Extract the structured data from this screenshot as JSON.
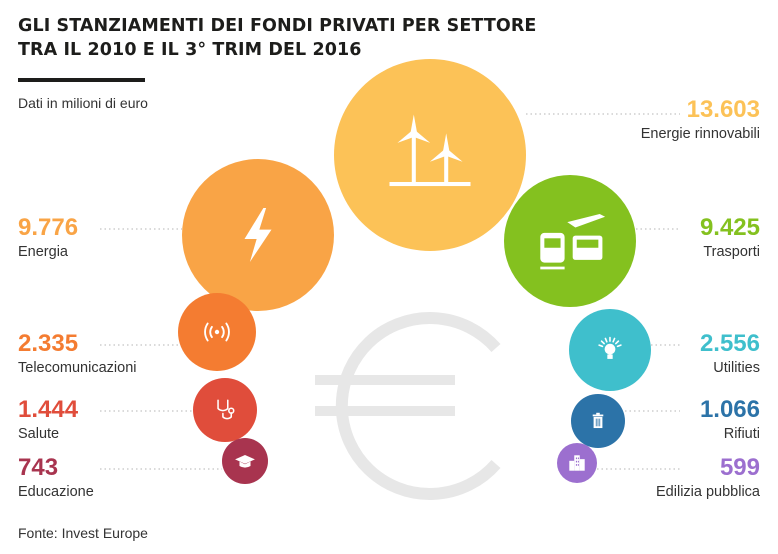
{
  "header": {
    "title_line1": "GLI STANZIAMENTI DEI FONDI PRIVATI PER SETTORE",
    "title_line2": "TRA IL 2010 E IL 3° TRIM DEL 2016",
    "subtitle": "Dati in milioni di euro"
  },
  "footer": {
    "source": "Fonte: Invest Europe"
  },
  "chart_data": {
    "type": "bubble",
    "title": "GLI STANZIAMENTI DEI FONDI PRIVATI PER SETTORE TRA IL 2010 E IL 3° TRIM DEL 2016",
    "unit": "Dati in milioni di euro",
    "background_symbol": "euro-sign",
    "categories": [
      "Energie rinnovabili",
      "Energia",
      "Trasporti",
      "Telecomunicazioni",
      "Utilities",
      "Salute",
      "Rifiuti",
      "Educazione",
      "Edilizia pubblica"
    ],
    "values": [
      13603,
      9776,
      9425,
      2335,
      2556,
      1444,
      1066,
      743,
      599
    ],
    "value_labels": [
      "13.603",
      "9.776",
      "9.425",
      "2.335",
      "2.556",
      "1.444",
      "1.066",
      "743",
      "599"
    ],
    "sides": [
      "right",
      "left",
      "right",
      "left",
      "right",
      "left",
      "right",
      "left",
      "right"
    ],
    "colors": [
      "#fcc257",
      "#f9a446",
      "#84c11f",
      "#f47c31",
      "#3fbfcc",
      "#e04d3b",
      "#2c73a8",
      "#a8344f",
      "#9c6fcf"
    ],
    "icons": [
      "wind-turbine-icon",
      "lightning-icon",
      "transport-icon",
      "broadcast-icon",
      "lightbulb-icon",
      "stethoscope-icon",
      "trash-icon",
      "graduation-cap-icon",
      "buildings-icon"
    ]
  }
}
